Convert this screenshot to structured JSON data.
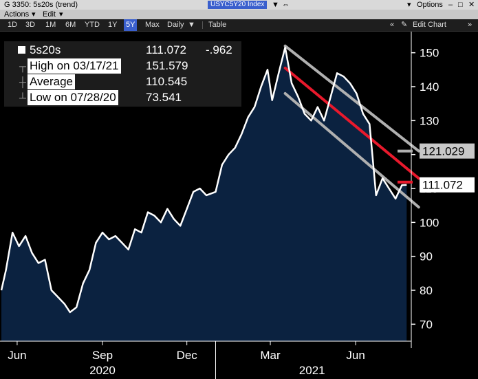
{
  "window": {
    "title": "G 3350: 5s20s (trend)",
    "ticker": "USYC5Y20 Index",
    "options_label": "Options"
  },
  "menu": {
    "actions": "Actions",
    "edit": "Edit"
  },
  "toolbar": {
    "ranges": [
      "1D",
      "3D",
      "1M",
      "6M",
      "YTD",
      "1Y",
      "5Y",
      "Max"
    ],
    "active_range": "5Y",
    "period": "Daily",
    "table": "Table",
    "edit_chart": "Edit Chart"
  },
  "legend": {
    "series": {
      "label": "5s20s",
      "value": "111.072",
      "change": "-.962"
    },
    "high": {
      "label": "High on 03/17/21",
      "value": "151.579"
    },
    "average": {
      "label": "Average",
      "value": "110.545"
    },
    "low": {
      "label": "Low on 07/28/20",
      "value": "73.541"
    }
  },
  "colors": {
    "accent": "#3a5fcd",
    "trend_mid": "#e8192c",
    "trend_band": "#b0b0b0",
    "area_fill": "#0b2240"
  },
  "chart_data": {
    "type": "area",
    "ylim": [
      65,
      155
    ],
    "y_ticks": [
      70,
      80,
      90,
      100,
      110,
      120,
      130,
      140,
      150
    ],
    "x_range": [
      "2020-05-15",
      "2021-07-31"
    ],
    "month_ticks": [
      {
        "label": "Jun",
        "date": "2020-06-01"
      },
      {
        "label": "Sep",
        "date": "2020-09-01"
      },
      {
        "label": "Dec",
        "date": "2020-12-01"
      },
      {
        "label": "Mar",
        "date": "2021-03-01"
      },
      {
        "label": "Jun",
        "date": "2021-06-01"
      }
    ],
    "year_labels": [
      {
        "label": "2020",
        "date": "2020-09-01"
      },
      {
        "label": "2021",
        "date": "2021-04-15"
      }
    ],
    "year_boundary": "2021-01-01",
    "series": [
      {
        "name": "5s20s",
        "points": [
          [
            "2020-05-15",
            80
          ],
          [
            "2020-05-20",
            86
          ],
          [
            "2020-05-27",
            97
          ],
          [
            "2020-06-03",
            93
          ],
          [
            "2020-06-10",
            96
          ],
          [
            "2020-06-17",
            91
          ],
          [
            "2020-06-24",
            88
          ],
          [
            "2020-07-01",
            89
          ],
          [
            "2020-07-08",
            80
          ],
          [
            "2020-07-15",
            78
          ],
          [
            "2020-07-22",
            76
          ],
          [
            "2020-07-28",
            73.541
          ],
          [
            "2020-08-04",
            75
          ],
          [
            "2020-08-11",
            82
          ],
          [
            "2020-08-18",
            86
          ],
          [
            "2020-08-25",
            94
          ],
          [
            "2020-09-01",
            97
          ],
          [
            "2020-09-08",
            95
          ],
          [
            "2020-09-15",
            96
          ],
          [
            "2020-09-22",
            94
          ],
          [
            "2020-09-29",
            92
          ],
          [
            "2020-10-06",
            98
          ],
          [
            "2020-10-13",
            97
          ],
          [
            "2020-10-20",
            103
          ],
          [
            "2020-10-27",
            102
          ],
          [
            "2020-11-03",
            100
          ],
          [
            "2020-11-10",
            104
          ],
          [
            "2020-11-17",
            101
          ],
          [
            "2020-11-24",
            99
          ],
          [
            "2020-12-01",
            104
          ],
          [
            "2020-12-08",
            109
          ],
          [
            "2020-12-15",
            110
          ],
          [
            "2020-12-22",
            108
          ],
          [
            "2021-01-01",
            109
          ],
          [
            "2021-01-08",
            117
          ],
          [
            "2021-01-15",
            120
          ],
          [
            "2021-01-22",
            122
          ],
          [
            "2021-01-29",
            126
          ],
          [
            "2021-02-05",
            131
          ],
          [
            "2021-02-12",
            134
          ],
          [
            "2021-02-19",
            140
          ],
          [
            "2021-02-26",
            145
          ],
          [
            "2021-03-03",
            136
          ],
          [
            "2021-03-10",
            144
          ],
          [
            "2021-03-17",
            151.579
          ],
          [
            "2021-03-24",
            141
          ],
          [
            "2021-03-31",
            137
          ],
          [
            "2021-04-07",
            132
          ],
          [
            "2021-04-14",
            130
          ],
          [
            "2021-04-21",
            134
          ],
          [
            "2021-04-28",
            130
          ],
          [
            "2021-05-05",
            137
          ],
          [
            "2021-05-12",
            144
          ],
          [
            "2021-05-19",
            143
          ],
          [
            "2021-05-26",
            141
          ],
          [
            "2021-06-02",
            138
          ],
          [
            "2021-06-09",
            132
          ],
          [
            "2021-06-16",
            129
          ],
          [
            "2021-06-23",
            108
          ],
          [
            "2021-06-30",
            113
          ],
          [
            "2021-07-07",
            110
          ],
          [
            "2021-07-14",
            107
          ],
          [
            "2021-07-21",
            111
          ],
          [
            "2021-07-26",
            111.072
          ]
        ]
      }
    ],
    "trend_lines": [
      {
        "name": "upper",
        "from": [
          "2021-03-17",
          152
        ],
        "to": [
          "2021-08-08",
          121.029
        ]
      },
      {
        "name": "middle",
        "from": [
          "2021-03-17",
          145.5
        ],
        "to": [
          "2021-08-08",
          113
        ]
      },
      {
        "name": "lower",
        "from": [
          "2021-03-17",
          138
        ],
        "to": [
          "2021-08-08",
          104.5
        ]
      }
    ],
    "callouts": [
      {
        "label": "121.029",
        "value": 121.029
      },
      {
        "label": "111.072",
        "value": 111.072
      }
    ]
  }
}
